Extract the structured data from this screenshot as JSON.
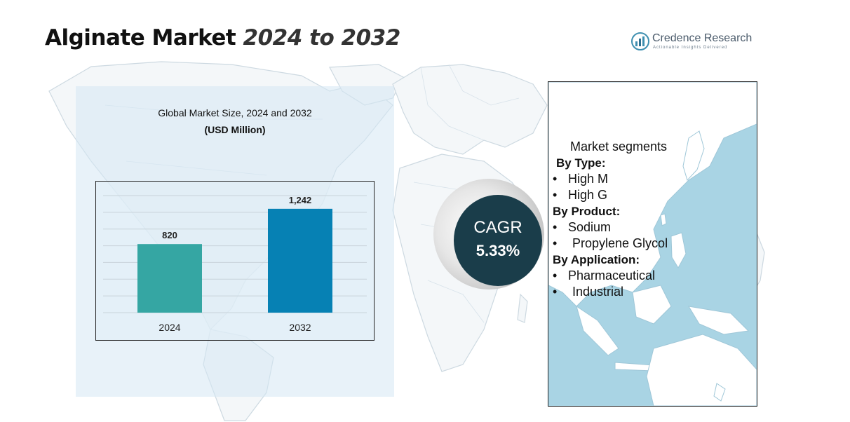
{
  "header": {
    "title_main": "Alginate Market",
    "title_years": "2024 to 2032"
  },
  "logo": {
    "name": "Credence Research",
    "tagline": "Actionable Insights Delivered",
    "icon": "credence-research-logo-icon"
  },
  "market_size": {
    "title_line1": "Global Market Size, 2024 and 2032",
    "title_line2": "(USD Million)"
  },
  "chart_data": {
    "type": "bar",
    "title": "Global Market Size, 2024 and 2032",
    "subtitle": "(USD Million)",
    "categories": [
      "2024",
      "2032"
    ],
    "values": [
      820,
      1242
    ],
    "data_labels": [
      "820",
      "1,242"
    ],
    "colors": [
      "#35a6a3",
      "#0681b4"
    ],
    "xlabel": "",
    "ylabel": "",
    "ylim": [
      0,
      1400
    ],
    "grid": true,
    "legend": "none"
  },
  "cagr": {
    "label": "CAGR",
    "value": "5.33%"
  },
  "segments": {
    "heading": "Market segments",
    "groups": [
      {
        "label": "By Type:",
        "items": [
          "High M",
          "High G"
        ]
      },
      {
        "label": "By Product:",
        "items": [
          "Sodium",
          "Propylene Glycol"
        ]
      },
      {
        "label": "By Application:",
        "items": [
          "Pharmaceutical",
          "Industrial"
        ]
      }
    ]
  },
  "colors": {
    "map_outline": "#c9d7e0",
    "left_panel": "#d6e8f4",
    "right_panel": "#a9d4e4",
    "cagr_circle": "#1a3d4a"
  }
}
